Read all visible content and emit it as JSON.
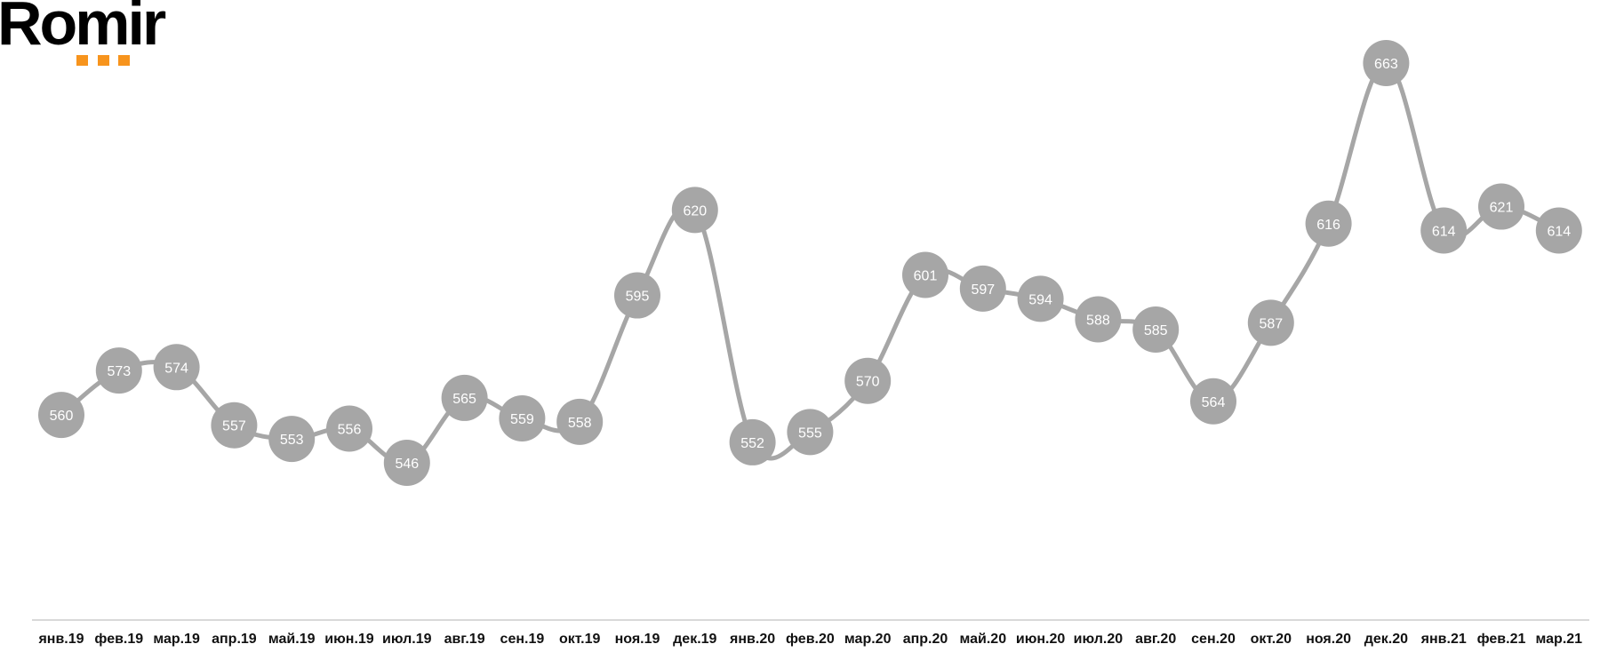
{
  "logo": {
    "text": "Romir",
    "accent": "#f7941d"
  },
  "chart_data": {
    "type": "line",
    "smooth": true,
    "markers": "circle-with-data-labels",
    "color": "#a6a6a6",
    "grid": false,
    "categories": [
      "янв.19",
      "фев.19",
      "мар.19",
      "апр.19",
      "май.19",
      "июн.19",
      "июл.19",
      "авг.19",
      "сен.19",
      "окт.19",
      "ноя.19",
      "дек.19",
      "янв.20",
      "фев.20",
      "мар.20",
      "апр.20",
      "май.20",
      "июн.20",
      "июл.20",
      "авг.20",
      "сен.20",
      "окт.20",
      "ноя.20",
      "дек.20",
      "янв.21",
      "фев.21",
      "мар.21"
    ],
    "values": [
      560,
      573,
      574,
      557,
      553,
      556,
      546,
      565,
      559,
      558,
      595,
      620,
      552,
      555,
      570,
      601,
      597,
      594,
      588,
      585,
      564,
      587,
      616,
      663,
      614,
      621,
      614
    ]
  }
}
